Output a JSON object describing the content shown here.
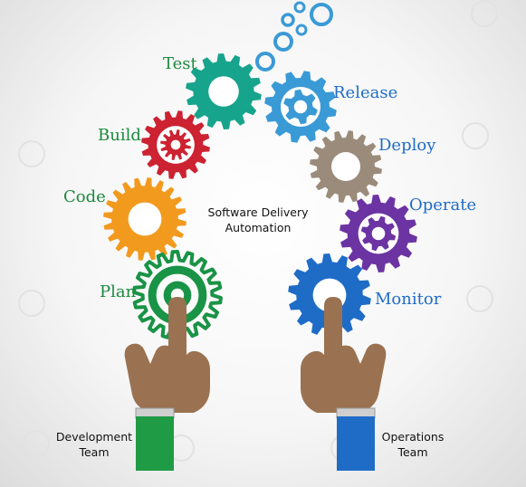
{
  "colors": {
    "test": "#17a48c",
    "release": "#3a9ad6",
    "build": "#cc2231",
    "deploy": "#9a8b7b",
    "code": "#f29a1e",
    "operate": "#6b34a2",
    "plan": "#199345",
    "monitor": "#1f6cc7",
    "skin": "#9a7251",
    "dev_sleeve": "#1f9b45",
    "ops_sleeve": "#1f6cc7",
    "label_green": "#1b8a3e",
    "label_blue": "#1f6cc7"
  },
  "stages": {
    "test": "Test",
    "build": "Build",
    "code": "Code",
    "plan": "Plan",
    "release": "Release",
    "deploy": "Deploy",
    "operate": "Operate",
    "monitor": "Monitor"
  },
  "center_caption": {
    "line1": "Software Delivery",
    "line2": "Automation"
  },
  "teams": {
    "development": {
      "line1": "Development",
      "line2": "Team"
    },
    "operations": {
      "line1": "Operations",
      "line2": "Team"
    }
  }
}
